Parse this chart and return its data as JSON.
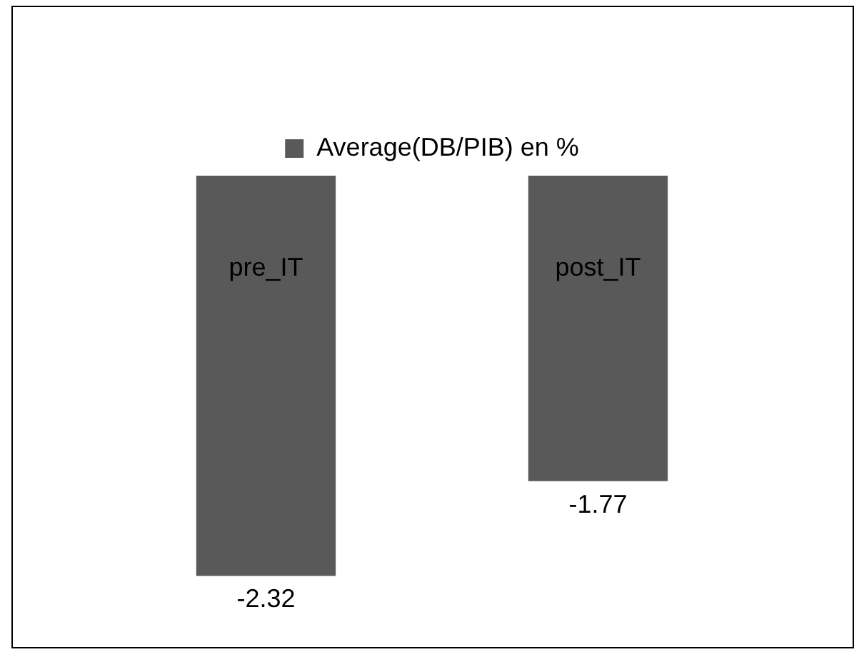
{
  "chart_data": {
    "type": "bar",
    "categories": [
      "pre_IT",
      "post_IT"
    ],
    "series": [
      {
        "name": "Average(DB/PIB) en %",
        "color": "#595959",
        "values": [
          -2.32,
          -1.77
        ]
      }
    ],
    "data_labels": true,
    "legend": "top",
    "tick_labels": "x"
  }
}
